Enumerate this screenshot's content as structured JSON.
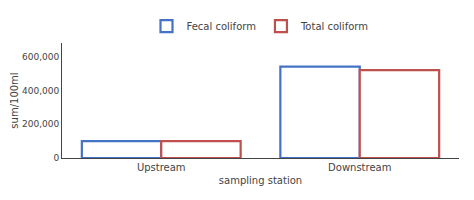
{
  "chart_data": {
    "type": "bar",
    "categories": [
      "Upstream",
      "Downstream"
    ],
    "series": [
      {
        "name": "Fecal coliform",
        "color": "#4472C4",
        "values": [
          100000,
          540000
        ]
      },
      {
        "name": "Total coliform",
        "color": "#C0504D",
        "values": [
          100000,
          520000
        ]
      }
    ],
    "xlabel": "sampling station",
    "ylabel": "sum/100ml",
    "ylim": [
      0,
      680000
    ],
    "yticks": [
      0,
      {
        "value": 200000,
        "label": "200,000"
      },
      {
        "value": 400000,
        "label": "400,000"
      },
      {
        "value": 600000,
        "label": "600,000"
      }
    ],
    "grid": false,
    "legend": "top"
  }
}
